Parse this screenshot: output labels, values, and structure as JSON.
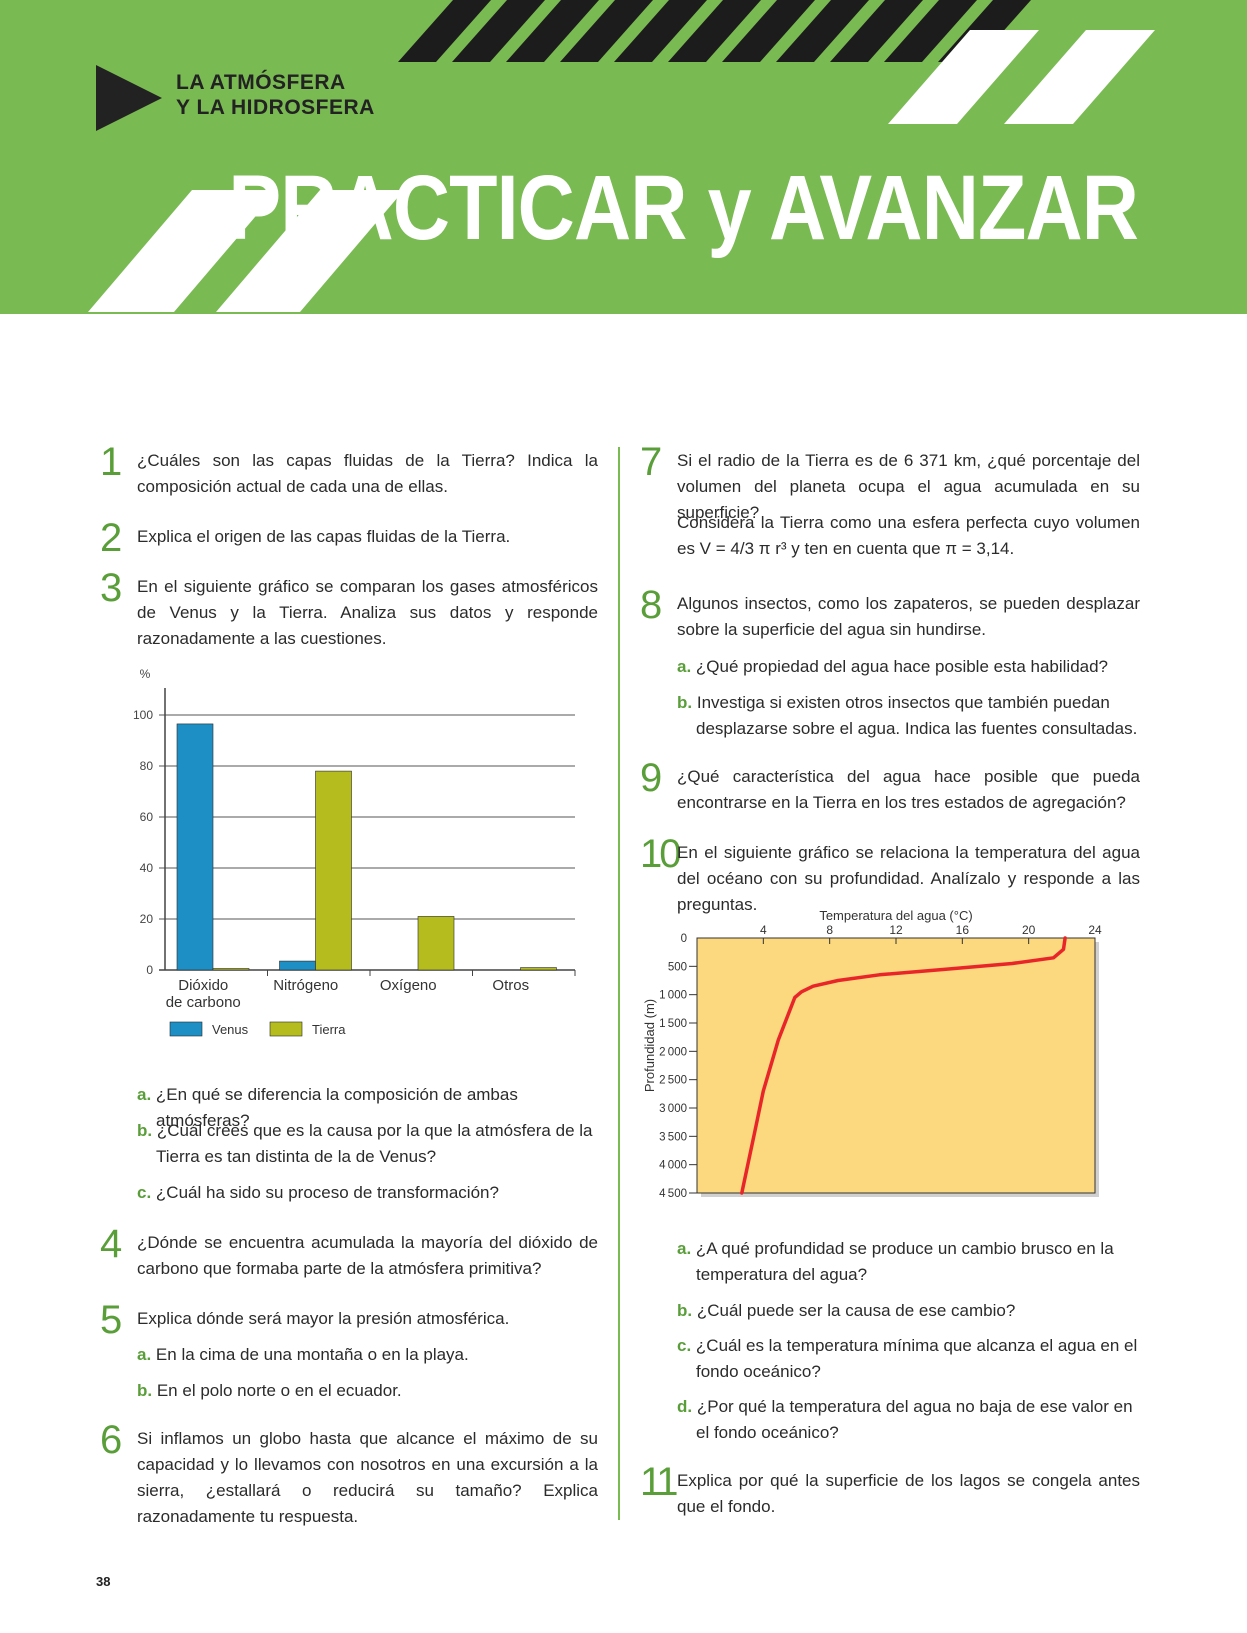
{
  "header": {
    "section_line1": "LA ATMÓSFERA",
    "section_line2": "Y LA HIDROSFERA",
    "title": "PRACTICAR y AVANZAR",
    "colors": {
      "green": "#7aba52",
      "dark": "#222222",
      "white": "#ffffff"
    }
  },
  "questions_left": [
    {
      "num": "1",
      "text": "¿Cuáles son las capas fluidas de la Tierra? Indica la composición actual de cada una de ellas."
    },
    {
      "num": "2",
      "text": "Explica el origen de las capas fluidas de la Tierra."
    },
    {
      "num": "3",
      "text": "En el siguiente gráfico se comparan los gases atmosféricos de Venus y la Tierra. Analiza sus datos y responde razonadamente a las cuestiones.",
      "subs": [
        {
          "letter": "a.",
          "text": "¿En qué se diferencia la composición de ambas atmósferas?"
        },
        {
          "letter": "b.",
          "text": "¿Cuál crees que es la causa por la que la atmósfera de la Tierra es tan distinta de la de Venus?"
        },
        {
          "letter": "c.",
          "text": "¿Cuál ha sido su proceso de transformación?"
        }
      ]
    },
    {
      "num": "4",
      "text": "¿Dónde se encuentra acumulada la mayoría del dióxido de carbono que formaba parte de la atmósfera primitiva?"
    },
    {
      "num": "5",
      "text": "Explica dónde será mayor la presión atmosférica.",
      "subs": [
        {
          "letter": "a.",
          "text": "En la cima de una montaña o en la playa."
        },
        {
          "letter": "b.",
          "text": "En el polo norte o en el ecuador."
        }
      ]
    },
    {
      "num": "6",
      "text": "Si inflamos un globo hasta que alcance el máximo de su capacidad y lo llevamos con nosotros en una excursión a la sierra, ¿estallará o reducirá su tamaño? Explica razonadamente tu respuesta."
    }
  ],
  "questions_right": [
    {
      "num": "7",
      "text": "Si el radio de la Tierra es de 6 371 km, ¿qué porcentaje del volumen del planeta ocupa el agua acumulada en su superficie?",
      "text2": "Considera la Tierra como una esfera perfecta cuyo volumen es V = 4/3 π r³ y ten en cuenta que π = 3,14."
    },
    {
      "num": "8",
      "text": "Algunos insectos, como los zapateros, se pueden desplazar sobre la superficie del agua sin hundirse.",
      "subs": [
        {
          "letter": "a.",
          "text": "¿Qué propiedad del agua hace posible esta habilidad?"
        },
        {
          "letter": "b.",
          "text": "Investiga si existen otros insectos que también puedan desplazarse sobre el agua. Indica las fuentes consultadas."
        }
      ]
    },
    {
      "num": "9",
      "text": "¿Qué característica del agua hace posible que pueda encontrarse en la Tierra en los tres estados de agregación?"
    },
    {
      "num": "10",
      "text": "En el siguiente gráfico se relaciona la temperatura del agua del océano con su profundidad. Analízalo y responde a las preguntas.",
      "subs": [
        {
          "letter": "a.",
          "text": "¿A qué profundidad se produce un cambio brusco en la temperatura del agua?"
        },
        {
          "letter": "b.",
          "text": "¿Cuál puede ser la causa de ese cambio?"
        },
        {
          "letter": "c.",
          "text": "¿Cuál es la temperatura mínima que alcanza el agua en el fondo oceánico?"
        },
        {
          "letter": "d.",
          "text": "¿Por qué la temperatura del agua no baja de ese valor en el fondo oceánico?"
        }
      ]
    },
    {
      "num": "11",
      "text": "Explica por qué la superficie de los lagos se congela antes que el fondo."
    }
  ],
  "page_number": "38",
  "chart_data": [
    {
      "type": "bar",
      "ylabel": "%",
      "ylim": [
        0,
        100
      ],
      "yticks": [
        "0",
        "20",
        "40",
        "60",
        "80",
        "100"
      ],
      "grid": true,
      "categories": [
        "Dióxido de carbono",
        "Nitrógeno",
        "Oxígeno",
        "Otros"
      ],
      "category_lines": [
        [
          "Dióxido",
          "de carbono"
        ],
        [
          "Nitrógeno"
        ],
        [
          "Oxígeno"
        ],
        [
          "Otros"
        ]
      ],
      "series": [
        {
          "name": "Venus",
          "values": [
            96.5,
            3.5,
            0,
            0
          ],
          "color": "#1e8fc4"
        },
        {
          "name": "Tierra",
          "values": [
            0.04,
            78,
            21,
            0.96
          ],
          "color": "#b5bd1e"
        }
      ],
      "legend_placement": "bottom"
    },
    {
      "type": "line",
      "xlabel": "Temperatura del agua (°C)",
      "ylabel": "Profundidad (m)",
      "xlim": [
        0,
        24
      ],
      "ylim": [
        0,
        4500
      ],
      "xticks": [
        "4",
        "8",
        "12",
        "16",
        "20",
        "24"
      ],
      "yticks": [
        "0",
        "500",
        "1000",
        "1500",
        "2000",
        "2500",
        "3000",
        "3500",
        "4000",
        "4500"
      ],
      "background_color": "#fcd87e",
      "series": [
        {
          "color": "#e8262a",
          "x": [
            22.2,
            22.1,
            21.5,
            19,
            15,
            11,
            8.5,
            7,
            6.3,
            5.9,
            5.7,
            4.9,
            4.0,
            3.5,
            2.7
          ],
          "y": [
            0,
            200,
            350,
            450,
            550,
            650,
            750,
            850,
            950,
            1050,
            1200,
            1800,
            2700,
            3400,
            4500
          ]
        }
      ]
    }
  ]
}
